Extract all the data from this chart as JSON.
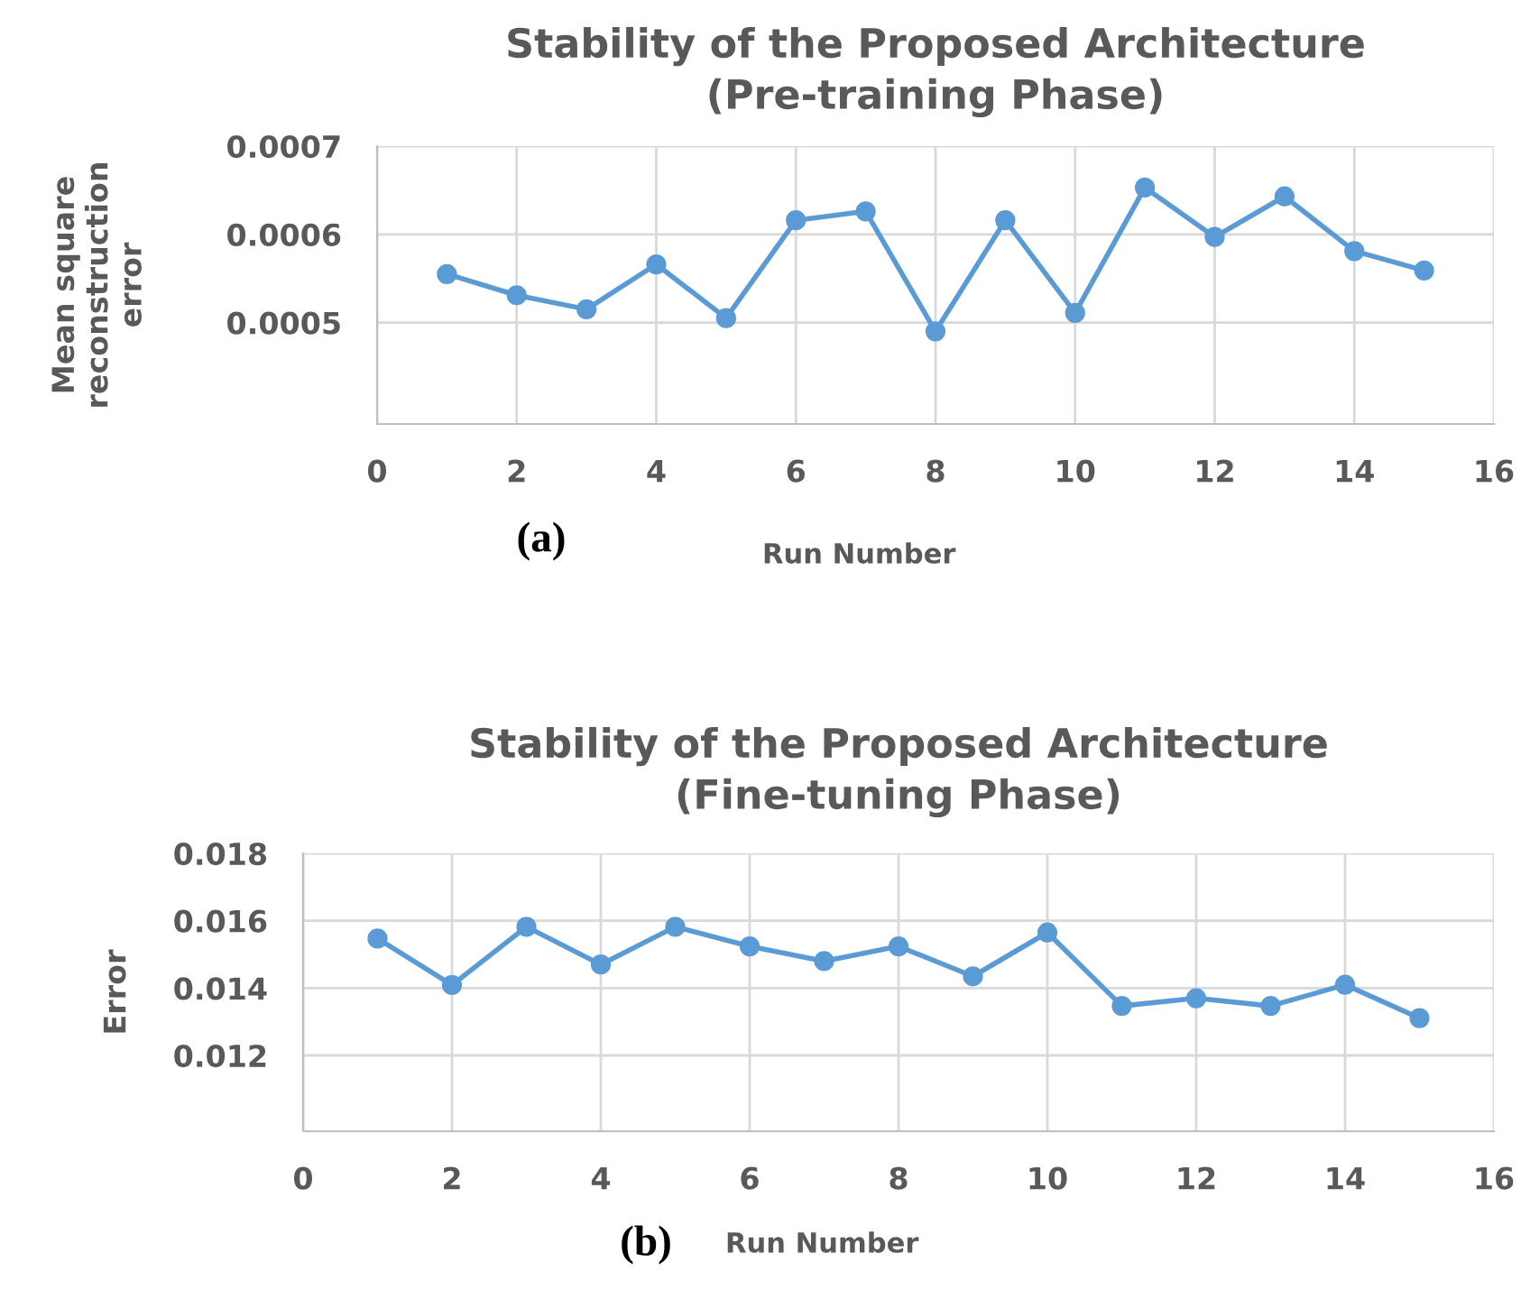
{
  "chart_data": [
    {
      "type": "line",
      "title": "Stability of the Proposed Architecture",
      "subtitle": "(Pre-training Phase)",
      "xlabel": "Run Number",
      "ylabel": "Mean square\nreconstruction\nerror",
      "annotations": [
        "(a)"
      ],
      "x": [
        1,
        2,
        3,
        4,
        5,
        6,
        7,
        8,
        9,
        10,
        11,
        12,
        13,
        14,
        15
      ],
      "series": [
        {
          "color": "#5b9bd5",
          "values": [
            0.000555,
            0.000531,
            0.000515,
            0.000566,
            0.000505,
            0.000616,
            0.000626,
            0.00049,
            0.000616,
            0.000511,
            0.000653,
            0.000597,
            0.000643,
            0.000581,
            0.000559
          ]
        }
      ],
      "xlim": [
        0,
        16
      ],
      "xticks": [
        0,
        2,
        4,
        6,
        8,
        10,
        12,
        14,
        16
      ],
      "ylim": [
        0.000385,
        0.0007
      ],
      "yticks": [
        0.0005,
        0.0006,
        0.0007
      ],
      "grid": true,
      "legend": false,
      "marker": "circle",
      "line_style": "solid"
    },
    {
      "type": "line",
      "title": "Stability of the Proposed Architecture",
      "subtitle": "(Fine-tuning Phase)",
      "xlabel": "Run Number",
      "ylabel": "Error",
      "annotations": [
        "(b)"
      ],
      "x": [
        1,
        2,
        3,
        4,
        5,
        6,
        7,
        8,
        9,
        10,
        11,
        12,
        13,
        14,
        15
      ],
      "series": [
        {
          "color": "#5b9bd5",
          "values": [
            0.01547,
            0.01409,
            0.01582,
            0.0147,
            0.01582,
            0.01524,
            0.0148,
            0.01524,
            0.01435,
            0.01565,
            0.01347,
            0.0137,
            0.01347,
            0.0141,
            0.01311
          ]
        }
      ],
      "xlim": [
        0,
        16
      ],
      "xticks": [
        0,
        2,
        4,
        6,
        8,
        10,
        12,
        14,
        16
      ],
      "ylim": [
        0.00975,
        0.018
      ],
      "yticks": [
        0.012,
        0.014,
        0.016,
        0.018
      ],
      "grid": true,
      "legend": false,
      "marker": "circle",
      "line_style": "solid"
    }
  ]
}
